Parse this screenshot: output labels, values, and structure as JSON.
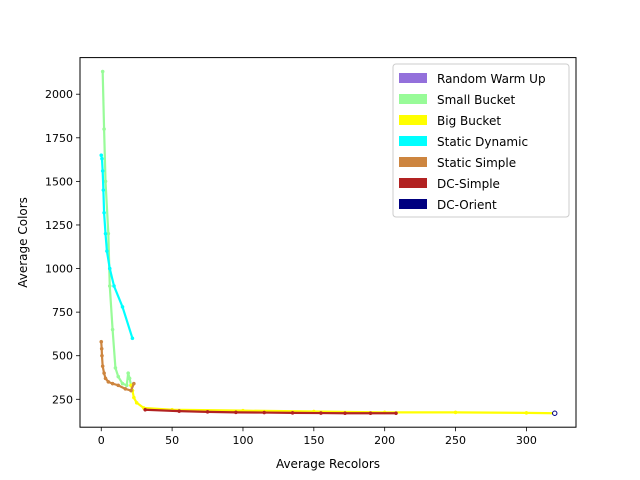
{
  "chart_data": {
    "type": "line",
    "title": "",
    "xlabel": "Average Recolors",
    "ylabel": "Average Colors",
    "xlim": [
      -15,
      335
    ],
    "ylim": [
      90,
      2210
    ],
    "xticks": [
      0,
      50,
      100,
      150,
      200,
      250,
      300
    ],
    "yticks": [
      250,
      500,
      750,
      1000,
      1250,
      1500,
      1750,
      2000
    ],
    "grid": false,
    "legend_position": "top-right",
    "series": [
      {
        "name": "Random Warm Up",
        "color": "#9370db",
        "points": []
      },
      {
        "name": "Small Bucket",
        "color": "#98fb98",
        "points": [
          [
            1,
            2130
          ],
          [
            2,
            1800
          ],
          [
            3,
            1500
          ],
          [
            5,
            1200
          ],
          [
            6,
            900
          ],
          [
            8,
            650
          ],
          [
            10,
            430
          ],
          [
            12,
            380
          ],
          [
            15,
            340
          ],
          [
            18,
            330
          ],
          [
            19,
            400
          ],
          [
            20,
            370
          ],
          [
            21,
            330
          ],
          [
            22,
            300
          ]
        ]
      },
      {
        "name": "Big Bucket",
        "color": "#ffff00",
        "points": [
          [
            21,
            330
          ],
          [
            22,
            300
          ],
          [
            23,
            260
          ],
          [
            25,
            230
          ],
          [
            30,
            200
          ],
          [
            50,
            190
          ],
          [
            100,
            185
          ],
          [
            150,
            180
          ],
          [
            200,
            175
          ],
          [
            250,
            175
          ],
          [
            300,
            172
          ],
          [
            320,
            170
          ]
        ]
      },
      {
        "name": "Static Dynamic",
        "color": "#00ffff",
        "points": [
          [
            0,
            1650
          ],
          [
            0.5,
            1630
          ],
          [
            1,
            1560
          ],
          [
            1.5,
            1450
          ],
          [
            2,
            1320
          ],
          [
            3,
            1200
          ],
          [
            4,
            1100
          ],
          [
            6,
            1000
          ],
          [
            9,
            900
          ],
          [
            15,
            780
          ],
          [
            22,
            600
          ]
        ]
      },
      {
        "name": "Static Simple",
        "color": "#cd853f",
        "points": [
          [
            0,
            580
          ],
          [
            0.3,
            540
          ],
          [
            0.5,
            500
          ],
          [
            1,
            440
          ],
          [
            2,
            400
          ],
          [
            3,
            370
          ],
          [
            5,
            350
          ],
          [
            8,
            340
          ],
          [
            12,
            330
          ],
          [
            17,
            310
          ],
          [
            21,
            300
          ],
          [
            23,
            340
          ]
        ]
      },
      {
        "name": "DC-Simple",
        "color": "#b22222",
        "points": [
          [
            31,
            190
          ],
          [
            55,
            182
          ],
          [
            75,
            178
          ],
          [
            95,
            175
          ],
          [
            115,
            174
          ],
          [
            135,
            172
          ],
          [
            155,
            171
          ],
          [
            172,
            170
          ],
          [
            190,
            170
          ],
          [
            208,
            170
          ]
        ]
      },
      {
        "name": "DC-Orient",
        "color": "#000080",
        "points": [
          [
            320,
            170
          ]
        ]
      }
    ]
  }
}
